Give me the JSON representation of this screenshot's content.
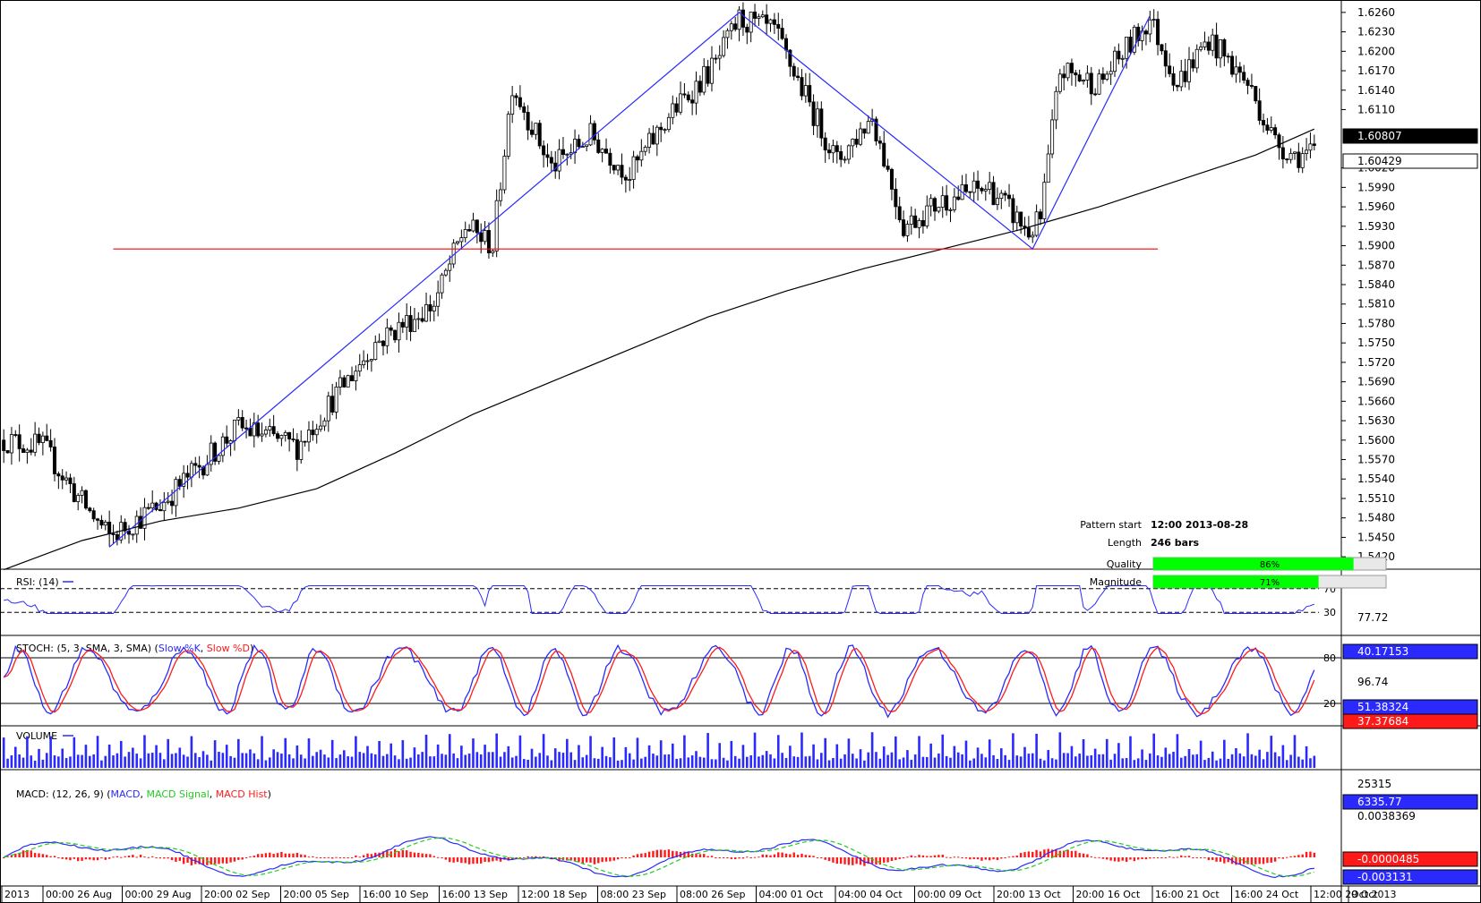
{
  "chart_data": [
    {
      "type": "candlestick",
      "panel": "price",
      "y_ticks": [
        "1.6260",
        "1.6230",
        "1.6200",
        "1.6170",
        "1.6140",
        "1.6110",
        "1.6020",
        "1.5990",
        "1.5960",
        "1.5930",
        "1.5900",
        "1.5870",
        "1.5840",
        "1.5810",
        "1.5780",
        "1.5750",
        "1.5720",
        "1.5690",
        "1.5660",
        "1.5630",
        "1.5600",
        "1.5570",
        "1.5540",
        "1.5510",
        "1.5480",
        "1.5450",
        "1.5420"
      ],
      "ylim": [
        1.5405,
        1.6275
      ],
      "current_price_label": "1.60429",
      "moving_average_label": "1.60807",
      "moving_average_points": [
        [
          0,
          1.54
        ],
        [
          20,
          1.5445
        ],
        [
          40,
          1.5475
        ],
        [
          60,
          1.5495
        ],
        [
          80,
          1.5525
        ],
        [
          100,
          1.558
        ],
        [
          120,
          1.564
        ],
        [
          140,
          1.569
        ],
        [
          160,
          1.574
        ],
        [
          180,
          1.579
        ],
        [
          200,
          1.583
        ],
        [
          220,
          1.5865
        ],
        [
          240,
          1.5895
        ],
        [
          260,
          1.5925
        ],
        [
          280,
          1.596
        ],
        [
          300,
          1.6
        ],
        [
          320,
          1.604
        ],
        [
          335,
          1.608
        ]
      ],
      "support_level": 1.5895,
      "support_range_bars": [
        28,
        295
      ],
      "pattern_lines": [
        [
          27,
          1.5435
        ],
        [
          188,
          1.626
        ],
        [
          263,
          1.5895
        ],
        [
          293,
          1.6255
        ]
      ],
      "info": {
        "pattern_start_label": "Pattern start",
        "pattern_start_value": "12:00 2013-08-28",
        "length_label": "Length",
        "length_value": "246 bars",
        "quality_label": "Quality",
        "quality_text": "86%",
        "quality_fraction": 0.86,
        "magnitude_label": "Magnitude",
        "magnitude_text": "71%",
        "magnitude_fraction": 0.71
      },
      "x_labels": [
        "2013",
        "00:00 26 Aug",
        "00:00 29 Aug",
        "20:00 02 Sep",
        "20:00 05 Sep",
        "16:00 10 Sep",
        "16:00 13 Sep",
        "12:00 18 Sep",
        "08:00 23 Sep",
        "08:00 26 Sep",
        "04:00 01 Oct",
        "04:00 04 Oct",
        "00:00 09 Oct",
        "20:00 13 Oct",
        "20:00 16 Oct",
        "16:00 21 Oct",
        "16:00 24 Oct",
        "12:00 29 Oct",
        "Oct 2013"
      ],
      "trend_waypoints": [
        [
          0,
          1.56
        ],
        [
          10,
          1.559
        ],
        [
          18,
          1.552
        ],
        [
          27,
          1.545
        ],
        [
          40,
          1.55
        ],
        [
          60,
          1.562
        ],
        [
          75,
          1.559
        ],
        [
          95,
          1.575
        ],
        [
          110,
          1.581
        ],
        [
          118,
          1.593
        ],
        [
          125,
          1.59
        ],
        [
          130,
          1.615
        ],
        [
          140,
          1.602
        ],
        [
          150,
          1.607
        ],
        [
          160,
          1.601
        ],
        [
          170,
          1.61
        ],
        [
          182,
          1.618
        ],
        [
          188,
          1.625
        ],
        [
          197,
          1.623
        ],
        [
          205,
          1.613
        ],
        [
          213,
          1.603
        ],
        [
          222,
          1.61
        ],
        [
          230,
          1.593
        ],
        [
          240,
          1.597
        ],
        [
          252,
          1.599
        ],
        [
          262,
          1.592
        ],
        [
          265,
          1.594
        ],
        [
          270,
          1.617
        ],
        [
          280,
          1.615
        ],
        [
          293,
          1.625
        ],
        [
          300,
          1.615
        ],
        [
          308,
          1.622
        ],
        [
          318,
          1.615
        ],
        [
          325,
          1.606
        ],
        [
          330,
          1.604
        ],
        [
          335,
          1.6042
        ]
      ]
    },
    {
      "type": "line",
      "panel": "rsi",
      "title": "RSI: (14)",
      "levels": [
        70,
        30
      ],
      "level_labels": [
        "70",
        "30"
      ],
      "top_label": "77.72",
      "value_label": "40.17153"
    },
    {
      "type": "line",
      "panel": "stochastic",
      "title_prefix": "STOCH: (5, 3, SMA, 3, SMA) (",
      "series": [
        {
          "name": "Slow %K",
          "color": "#2a2aff"
        },
        {
          "name": "Slow %D",
          "color": "#ff1a1a"
        }
      ],
      "title_sep": ", ",
      "title_suffix": ")",
      "levels": [
        80,
        20
      ],
      "level_labels": [
        "80",
        "20"
      ],
      "top_label": "96.74",
      "k_label": "51.38324",
      "d_label": "37.37684"
    },
    {
      "type": "bar",
      "panel": "volume",
      "title": "VOLUME",
      "top_label": "25315",
      "value_label": "6335.77"
    },
    {
      "type": "line",
      "panel": "macd",
      "title_prefix": "MACD: (12, 26, 9) (",
      "series": [
        {
          "name": "MACD",
          "color": "#2a2aff"
        },
        {
          "name": "MACD Signal",
          "color": "#22cc22"
        },
        {
          "name": "MACD Hist",
          "color": "#ff1a1a"
        }
      ],
      "title_sep": ", ",
      "title_suffix": ")",
      "top_label": "0.0038369",
      "hist_label": "-0.0000485",
      "macd_label": "-0.003131"
    }
  ]
}
